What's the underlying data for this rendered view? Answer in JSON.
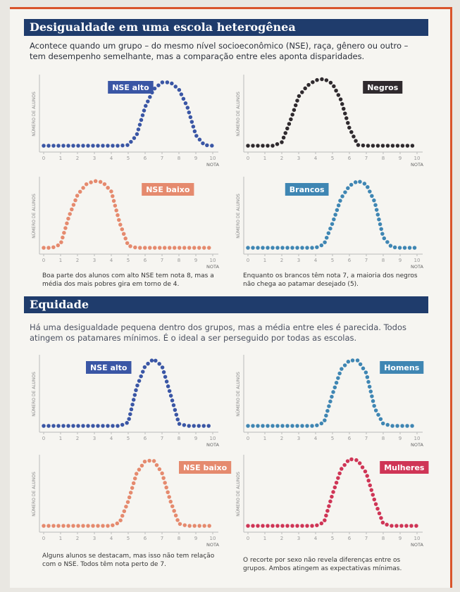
{
  "sections": [
    {
      "title": "Desigualdade em uma escola heterogênea",
      "intro": "Acontece quando um grupo – do mesmo nível socioeconômico (NSE), raça, gênero ou outro – tem desempenho semelhante, mas a comparação entre eles aponta disparidades.",
      "charts": [
        {
          "type": "line",
          "label": "NSE alto",
          "color": "#3a56a5",
          "xlabel": "NOTA",
          "ylabel": "NÚMERO DE ALUNOS",
          "xlim": [
            0,
            10
          ],
          "ylim": [
            0,
            10
          ],
          "xticks": [
            0,
            1,
            2,
            3,
            4,
            5,
            6,
            7,
            8,
            9,
            10
          ],
          "x": [
            0,
            0.5,
            1,
            1.5,
            2,
            2.5,
            3,
            3.5,
            4,
            4.5,
            5,
            5.5,
            6,
            6.5,
            7,
            7.5,
            8,
            8.5,
            9,
            9.5,
            10
          ],
          "values": [
            0.5,
            0.5,
            0.5,
            0.5,
            0.5,
            0.5,
            0.5,
            0.5,
            0.5,
            0.5,
            0.6,
            2,
            6,
            8.5,
            9.5,
            9.5,
            8.5,
            6,
            2,
            0.6,
            0.5
          ]
        },
        {
          "type": "line",
          "label": "Negros",
          "color": "#2f2a2e",
          "xlabel": "NOTA",
          "ylabel": "NÚMERO DE ALUNOS",
          "xlim": [
            0,
            10
          ],
          "ylim": [
            0,
            10
          ],
          "xticks": [
            0,
            1,
            2,
            3,
            4,
            5,
            6,
            7,
            8,
            9,
            10
          ],
          "x": [
            0,
            0.5,
            1,
            1.5,
            2,
            2.5,
            3,
            3.5,
            4,
            4.5,
            5,
            5.5,
            6,
            6.5,
            7,
            7.5,
            8,
            8.5,
            9,
            9.5,
            10
          ],
          "values": [
            0.5,
            0.5,
            0.5,
            0.5,
            1,
            4,
            7.5,
            9,
            9.8,
            10,
            9.3,
            7,
            3,
            0.6,
            0.5,
            0.5,
            0.5,
            0.5,
            0.5,
            0.5,
            0.5
          ]
        },
        {
          "type": "line",
          "label": "NSE baixo",
          "color": "#e58a6e",
          "xlabel": "NOTA",
          "ylabel": "NÚMERO DE ALUNOS",
          "xlim": [
            0,
            10
          ],
          "ylim": [
            0,
            10
          ],
          "xticks": [
            0,
            1,
            2,
            3,
            4,
            5,
            6,
            7,
            8,
            9,
            10
          ],
          "x": [
            0,
            0.5,
            1,
            1.5,
            2,
            2.5,
            3,
            3.5,
            4,
            4.5,
            5,
            5.5,
            6,
            6.5,
            7,
            7.5,
            8,
            8.5,
            9,
            9.5,
            10
          ],
          "values": [
            0.5,
            0.5,
            1,
            5,
            8,
            9.5,
            10,
            9.8,
            8.5,
            4,
            0.8,
            0.5,
            0.5,
            0.5,
            0.5,
            0.5,
            0.5,
            0.5,
            0.5,
            0.5,
            0.5
          ]
        },
        {
          "type": "line",
          "label": "Brancos",
          "color": "#3f86b3",
          "xlabel": "NOTA",
          "ylabel": "NÚMERO DE ALUNOS",
          "xlim": [
            0,
            10
          ],
          "ylim": [
            0,
            10
          ],
          "xticks": [
            0,
            1,
            2,
            3,
            4,
            5,
            6,
            7,
            8,
            9,
            10
          ],
          "x": [
            0,
            0.5,
            1,
            1.5,
            2,
            2.5,
            3,
            3.5,
            4,
            4.5,
            5,
            5.5,
            6,
            6.5,
            7,
            7.5,
            8,
            8.5,
            9,
            9.5,
            10
          ],
          "values": [
            0.5,
            0.5,
            0.5,
            0.5,
            0.5,
            0.5,
            0.5,
            0.5,
            0.5,
            1,
            4,
            7.5,
            9.3,
            10,
            9.5,
            7,
            2,
            0.6,
            0.5,
            0.5,
            0.5
          ]
        }
      ],
      "captions": [
        "Boa parte dos alunos com alto NSE tem nota 8, mas a média dos mais pobres gira em torno de 4.",
        "Enquanto os brancos têm nota 7, a maioria dos negros não chega ao patamar desejado (5)."
      ]
    },
    {
      "title": "Equidade",
      "intro": "Há uma desigualdade pequena dentro dos grupos, mas a média entre eles é parecida. Todos atingem os patamares mínimos. É o ideal a ser perseguido por todas as escolas.",
      "charts": [
        {
          "type": "line",
          "label": "NSE alto",
          "color": "#3a56a5",
          "xlabel": "NOTA",
          "ylabel": "NÚMERO DE ALUNOS",
          "xlim": [
            0,
            10
          ],
          "ylim": [
            0,
            10
          ],
          "xticks": [
            0,
            1,
            2,
            3,
            4,
            5,
            6,
            7,
            8,
            9,
            10
          ],
          "x": [
            0,
            0.5,
            1,
            1.5,
            2,
            2.5,
            3,
            3.5,
            4,
            4.5,
            5,
            5.5,
            6,
            6.5,
            7,
            7.5,
            8,
            8.5,
            9,
            9.5,
            10
          ],
          "values": [
            0.5,
            0.5,
            0.5,
            0.5,
            0.5,
            0.5,
            0.5,
            0.5,
            0.5,
            0.5,
            1,
            6,
            9,
            10,
            9,
            5,
            0.8,
            0.5,
            0.5,
            0.5,
            0.5
          ]
        },
        {
          "type": "line",
          "label": "Homens",
          "color": "#3f86b3",
          "xlabel": "NOTA",
          "ylabel": "NÚMERO DE ALUNOS",
          "xlim": [
            0,
            10
          ],
          "ylim": [
            0,
            10
          ],
          "xticks": [
            0,
            1,
            2,
            3,
            4,
            5,
            6,
            7,
            8,
            9,
            10
          ],
          "x": [
            0,
            0.5,
            1,
            1.5,
            2,
            2.5,
            3,
            3.5,
            4,
            4.5,
            5,
            5.5,
            6,
            6.5,
            7,
            7.5,
            8,
            8.5,
            9,
            9.5,
            10
          ],
          "values": [
            0.5,
            0.5,
            0.5,
            0.5,
            0.5,
            0.5,
            0.5,
            0.5,
            0.5,
            1,
            5,
            8.5,
            9.8,
            9.8,
            8,
            3,
            0.8,
            0.5,
            0.5,
            0.5,
            0.5
          ]
        },
        {
          "type": "line",
          "label": "NSE baixo",
          "color": "#e58a6e",
          "xlabel": "NOTA",
          "ylabel": "NÚMERO DE ALUNOS",
          "xlim": [
            0,
            10
          ],
          "ylim": [
            0,
            10
          ],
          "xticks": [
            0,
            1,
            2,
            3,
            4,
            5,
            6,
            7,
            8,
            9,
            10
          ],
          "x": [
            0,
            0.5,
            1,
            1.5,
            2,
            2.5,
            3,
            3.5,
            4,
            4.5,
            5,
            5.5,
            6,
            6.5,
            7,
            7.5,
            8,
            8.5,
            9,
            9.5,
            10
          ],
          "values": [
            0.5,
            0.5,
            0.5,
            0.5,
            0.5,
            0.5,
            0.5,
            0.5,
            0.5,
            1,
            4,
            8,
            9.7,
            9.8,
            8,
            4,
            0.8,
            0.5,
            0.5,
            0.5,
            0.5
          ]
        },
        {
          "type": "line",
          "label": "Mulheres",
          "color": "#cf3556",
          "xlabel": "NOTA",
          "ylabel": "NÚMERO DE ALUNOS",
          "xlim": [
            0,
            10
          ],
          "ylim": [
            0,
            10
          ],
          "xticks": [
            0,
            1,
            2,
            3,
            4,
            5,
            6,
            7,
            8,
            9,
            10
          ],
          "x": [
            0,
            0.5,
            1,
            1.5,
            2,
            2.5,
            3,
            3.5,
            4,
            4.5,
            5,
            5.5,
            6,
            6.5,
            7,
            7.5,
            8,
            8.5,
            9,
            9.5,
            10
          ],
          "values": [
            0.5,
            0.5,
            0.5,
            0.5,
            0.5,
            0.5,
            0.5,
            0.5,
            0.5,
            1,
            5,
            8.5,
            10,
            9.8,
            8,
            4,
            0.8,
            0.5,
            0.5,
            0.5,
            0.5
          ]
        }
      ],
      "captions": [
        "Alguns alunos se destacam, mas isso não tem relação com o NSE. Todos têm nota perto de 7.",
        "O recorte por sexo não revela diferenças entre os grupos. Ambos atingem as expectativas mínimas."
      ]
    }
  ]
}
